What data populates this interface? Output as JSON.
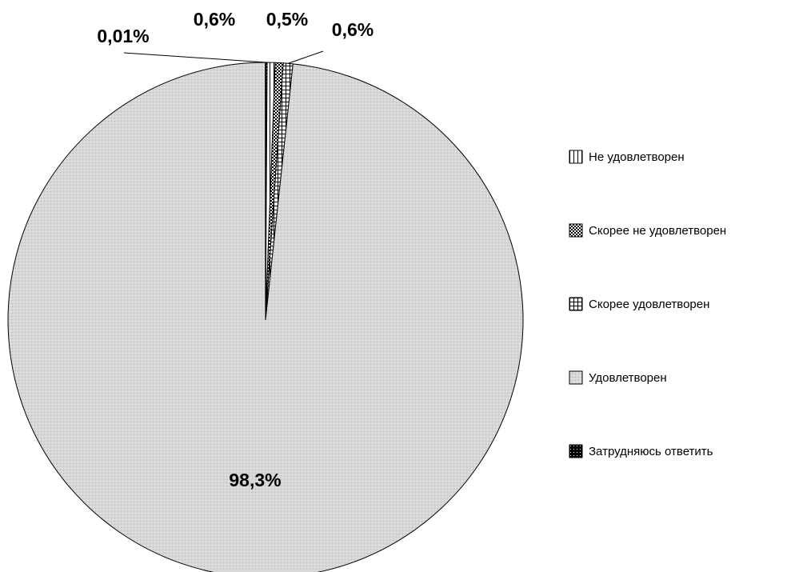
{
  "chart_data": {
    "type": "pie",
    "title": "",
    "slices": [
      {
        "name": "Не удовлетворен",
        "value": 0.6,
        "label": "0,6%",
        "pattern": "vertical-lines"
      },
      {
        "name": "Скорее не удовлетворен",
        "value": 0.5,
        "label": "0,5%",
        "pattern": "checker"
      },
      {
        "name": "Скорее удовлетворен",
        "value": 0.6,
        "label": "0,6%",
        "pattern": "grid"
      },
      {
        "name": "Удовлетворен",
        "value": 98.3,
        "label": "98,3%",
        "pattern": "light-dots"
      },
      {
        "name": "Затрудняюсь ответить",
        "value": 0.01,
        "label": "0,01%",
        "pattern": "dark-dots"
      }
    ],
    "legend": {
      "placement": "right",
      "entries": [
        "Не удовлетворен",
        "Скорее не удовлетворен",
        "Скорее удовлетворен",
        "Удовлетворен",
        "Затрудняюсь ответить"
      ]
    },
    "colors": {
      "main_fill": "#d4d4d4",
      "outline": "#000000",
      "background": "#ffffff"
    }
  }
}
